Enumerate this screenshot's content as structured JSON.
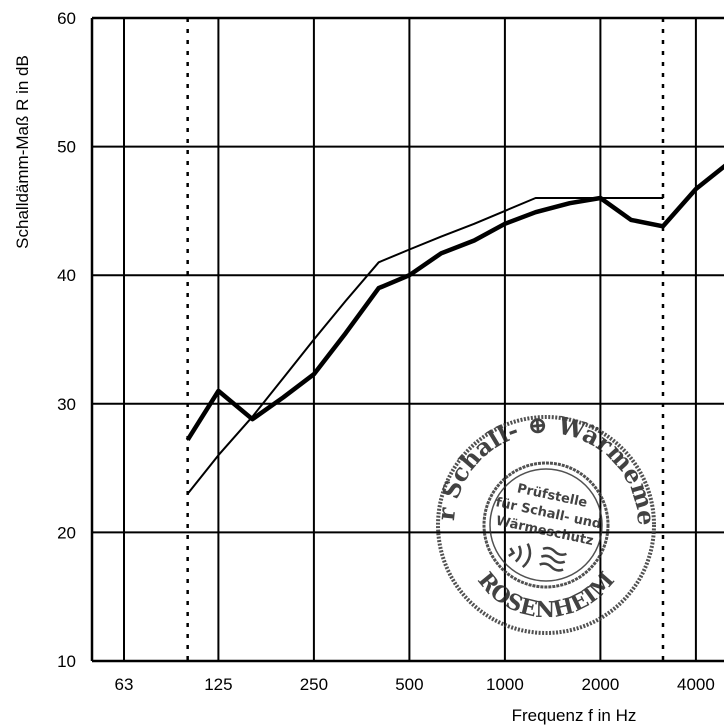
{
  "chart_data": {
    "type": "line",
    "xlabel": "Frequenz f in Hz",
    "ylabel": "Schalldämm-Maß R in dB",
    "ylim": [
      10,
      60
    ],
    "x_tick_labels": [
      "63",
      "125",
      "250",
      "500",
      "1000",
      "2000",
      "4000"
    ],
    "y_tick_labels": [
      "10",
      "20",
      "30",
      "40",
      "50",
      "60"
    ],
    "x_scale": "log (third-octave bands)",
    "grid": true,
    "series": [
      {
        "style": "bold",
        "x": [
          100,
          125,
          160,
          200,
          250,
          315,
          400,
          500,
          630,
          800,
          1000,
          1250,
          1600,
          2000,
          2500,
          3150,
          4000,
          5000
        ],
        "y": [
          27.2,
          31.0,
          28.8,
          30.5,
          32.3,
          35.5,
          39.0,
          40.0,
          41.7,
          42.7,
          44.0,
          44.9,
          45.6,
          46.0,
          44.3,
          43.8,
          46.7,
          48.6
        ]
      },
      {
        "style": "thin",
        "x": [
          100,
          125,
          160,
          200,
          250,
          315,
          400,
          500,
          630,
          800,
          1000,
          1250,
          1600,
          2000,
          2500,
          3150
        ],
        "y": [
          23,
          26,
          29,
          32,
          35,
          38,
          41,
          42,
          43,
          44,
          45,
          46,
          46,
          46,
          46,
          46
        ]
      }
    ],
    "band_limits_dotted": [
      100,
      3150
    ]
  },
  "stamp": {
    "outer_text": "LABOR für Schall- ⊕ Wärmemesstechnik",
    "city": "ROSENHEIM",
    "inner_lines": [
      "Prüfstelle",
      "für Schall- und",
      "Wärmeschutz"
    ]
  }
}
